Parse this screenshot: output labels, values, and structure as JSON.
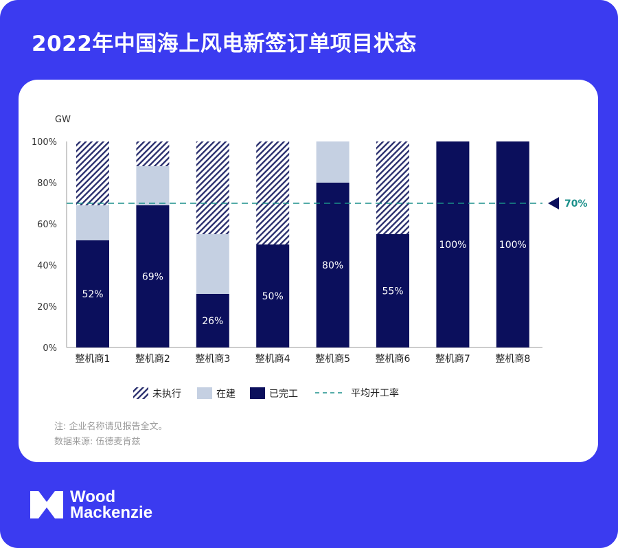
{
  "title": "2022年中国海上风电新签订单项目状态",
  "unit_label": "GW",
  "chart_data": {
    "type": "bar",
    "stacked": true,
    "categories": [
      "整机商1",
      "整机商2",
      "整机商3",
      "整机商4",
      "整机商5",
      "整机商6",
      "整机商7",
      "整机商8"
    ],
    "series": [
      {
        "name": "已完工",
        "values": [
          52,
          69,
          26,
          50,
          80,
          55,
          100,
          100
        ],
        "color": "#0b0f5c"
      },
      {
        "name": "在建",
        "values": [
          17,
          19,
          29,
          0,
          20,
          0,
          0,
          0
        ],
        "color": "#c5d0e2"
      },
      {
        "name": "未执行",
        "values": [
          31,
          12,
          45,
          50,
          0,
          45,
          0,
          0
        ],
        "color": "#2a2f6e",
        "pattern": "hatched"
      }
    ],
    "data_labels": [
      "52%",
      "69%",
      "26%",
      "50%",
      "80%",
      "55%",
      "100%",
      "100%"
    ],
    "y_ticks": [
      "0%",
      "20%",
      "40%",
      "60%",
      "80%",
      "100%"
    ],
    "ylim": [
      0,
      100
    ],
    "reference_line": {
      "name": "平均开工率",
      "value": 70,
      "label": "70%",
      "color": "#1a8f8a"
    },
    "legend": [
      {
        "label": "未执行",
        "kind": "hatched"
      },
      {
        "label": "在建",
        "kind": "light"
      },
      {
        "label": "已完工",
        "kind": "dark"
      },
      {
        "label": "平均开工率",
        "kind": "dashed"
      }
    ],
    "legend_placement": "bottom",
    "grid": false
  },
  "notes": {
    "note1": "注: 企业名称请见报告全文。",
    "note2": "数据来源: 伍德麦肯兹"
  },
  "brand": {
    "line1": "Wood",
    "line2": "Mackenzie",
    "background": "#3b3bf0"
  }
}
